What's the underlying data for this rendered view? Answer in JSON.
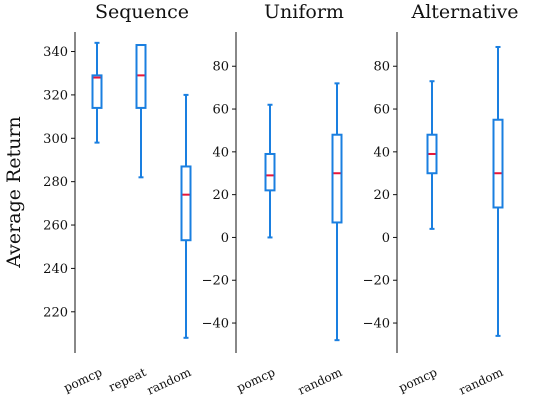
{
  "ylabel": "Average Return",
  "colors": {
    "box": "#1a7fe0",
    "median": "#e8163a",
    "axis": "#111111"
  },
  "chart_data": [
    {
      "type": "box",
      "title": "Sequence",
      "ylim": [
        201,
        349
      ],
      "yticks": [
        220,
        240,
        260,
        280,
        300,
        320,
        340
      ],
      "categories": [
        "pomcp",
        "repeat",
        "random"
      ],
      "boxes": [
        {
          "min": 298,
          "q1": 314,
          "median": 328,
          "q3": 329,
          "max": 344
        },
        {
          "min": 282,
          "q1": 314,
          "median": 329,
          "q3": 343,
          "max": 343
        },
        {
          "min": 208,
          "q1": 253,
          "median": 274,
          "q3": 287,
          "max": 320
        }
      ]
    },
    {
      "type": "box",
      "title": "Uniform",
      "ylim": [
        -54,
        96
      ],
      "yticks": [
        -40,
        -20,
        0,
        20,
        40,
        60,
        80
      ],
      "tick_labels": [
        "−40",
        "−20",
        "0",
        "20",
        "40",
        "60",
        "80"
      ],
      "categories": [
        "pomcp",
        "random"
      ],
      "boxes": [
        {
          "min": 0,
          "q1": 22,
          "median": 29,
          "q3": 39,
          "max": 62
        },
        {
          "min": -48,
          "q1": 7,
          "median": 30,
          "q3": 48,
          "max": 72
        }
      ]
    },
    {
      "type": "box",
      "title": "Alternative",
      "ylim": [
        -54,
        96
      ],
      "yticks": [
        -40,
        -20,
        0,
        20,
        40,
        60,
        80
      ],
      "tick_labels": [
        "−40",
        "−20",
        "0",
        "20",
        "40",
        "60",
        "80"
      ],
      "categories": [
        "pomcp",
        "random"
      ],
      "boxes": [
        {
          "min": 4,
          "q1": 30,
          "median": 39,
          "q3": 48,
          "max": 73
        },
        {
          "min": -46,
          "q1": 14,
          "median": 30,
          "q3": 55,
          "max": 89
        }
      ]
    }
  ]
}
